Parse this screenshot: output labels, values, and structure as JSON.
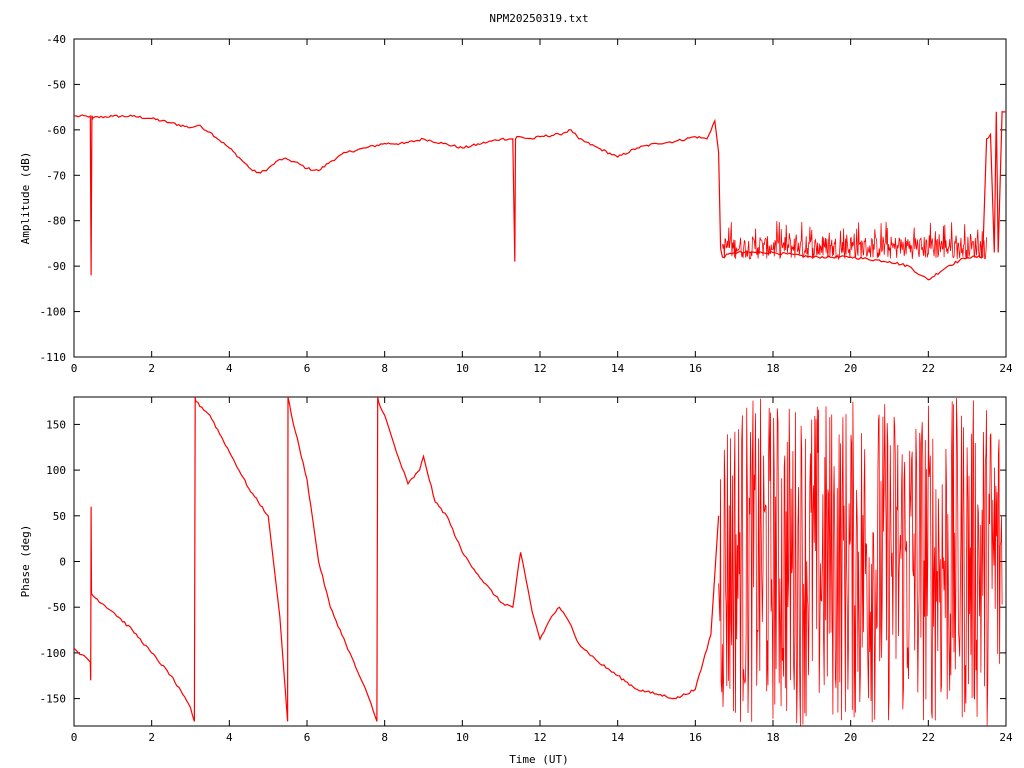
{
  "title": "NPM20250319.txt",
  "colors": {
    "series": "#ff0000",
    "axis": "#000000",
    "background": "#ffffff"
  },
  "chart_data": [
    {
      "type": "line",
      "ylabel": "Amplitude (dB)",
      "xlabel": "",
      "xlim": [
        0,
        24
      ],
      "ylim": [
        -110,
        -40
      ],
      "x_ticks": [
        0,
        2,
        4,
        6,
        8,
        10,
        12,
        14,
        16,
        18,
        20,
        22,
        24
      ],
      "y_ticks": [
        -40,
        -50,
        -60,
        -70,
        -80,
        -90,
        -100,
        -110
      ],
      "x_tick_labels": [
        "0",
        "2",
        "4",
        "6",
        "8",
        "10",
        "12",
        "14",
        "16",
        "18",
        "20",
        "22",
        "24"
      ],
      "y_tick_labels": [
        "-40",
        "-50",
        "-60",
        "-70",
        "-80",
        "-90",
        "-100",
        "-110"
      ],
      "grid": false,
      "series": [
        {
          "x": [
            0,
            0.42,
            0.44,
            0.46,
            0.48,
            0.5,
            1.0,
            1.5,
            2.0,
            2.5,
            3.0,
            3.2,
            3.5,
            4.0,
            4.3,
            4.6,
            4.8,
            5.0,
            5.3,
            5.5,
            5.8,
            6.0,
            6.3,
            6.6,
            7.0,
            7.5,
            8.0,
            8.5,
            9.0,
            9.5,
            10.0,
            10.5,
            11.0,
            11.3,
            11.35,
            11.37,
            11.4,
            11.8,
            12.0,
            12.5,
            12.8,
            13.0,
            13.5,
            14.0,
            14.5,
            15.0,
            15.5,
            16.0,
            16.3,
            16.5,
            16.6,
            16.65,
            16.7,
            17.0,
            18.0,
            19.0,
            20.0,
            21.0,
            21.5,
            21.8,
            22.0,
            22.5,
            23.0,
            23.4,
            23.5,
            23.6,
            23.7,
            23.75,
            23.8,
            23.9,
            24.0
          ],
          "values": [
            -57,
            -57,
            -92,
            -57,
            -57.5,
            -57.3,
            -57,
            -57,
            -57.5,
            -58.5,
            -59.5,
            -59,
            -60.5,
            -64,
            -66.5,
            -69,
            -69.5,
            -68.5,
            -66.5,
            -66.5,
            -67.5,
            -68.5,
            -69,
            -67,
            -65,
            -64,
            -63,
            -63,
            -62,
            -63,
            -64,
            -63,
            -62,
            -62,
            -89,
            -62,
            -61.5,
            -62,
            -61.5,
            -61,
            -60,
            -62,
            -64,
            -66,
            -64,
            -63,
            -62.5,
            -61.5,
            -62,
            -58,
            -65,
            -86,
            -88,
            -87,
            -87,
            -88,
            -88,
            -89,
            -90,
            -92,
            -93,
            -90,
            -88,
            -88,
            -62,
            -61,
            -87,
            -56,
            -87,
            -56,
            -56
          ],
          "noise_bands": [
            [
              16.7,
              23.5,
              -93,
              -80
            ]
          ]
        }
      ]
    },
    {
      "type": "line",
      "ylabel": "Phase (deg)",
      "xlabel": "Time (UT)",
      "xlim": [
        0,
        24
      ],
      "ylim": [
        -180,
        180
      ],
      "x_ticks": [
        0,
        2,
        4,
        6,
        8,
        10,
        12,
        14,
        16,
        18,
        20,
        22,
        24
      ],
      "y_ticks": [
        150,
        100,
        50,
        0,
        -50,
        -100,
        -150
      ],
      "x_tick_labels": [
        "0",
        "2",
        "4",
        "6",
        "8",
        "10",
        "12",
        "14",
        "16",
        "18",
        "20",
        "22",
        "24"
      ],
      "y_tick_labels": [
        "150",
        "100",
        "50",
        "0",
        "-50",
        "-100",
        "-150"
      ],
      "grid": false,
      "series": [
        {
          "x": [
            0,
            0.2,
            0.42,
            0.43,
            0.44,
            0.45,
            0.5,
            1.0,
            1.5,
            2.0,
            2.5,
            3.0,
            3.1,
            3.12,
            3.14,
            3.5,
            4.0,
            4.5,
            5.0,
            5.3,
            5.5,
            5.51,
            5.6,
            6.0,
            6.3,
            6.6,
            7.0,
            7.3,
            7.6,
            7.8,
            7.82,
            7.84,
            8.0,
            8.3,
            8.6,
            8.9,
            9.0,
            9.3,
            9.6,
            10.0,
            10.5,
            11.0,
            11.3,
            11.5,
            11.8,
            12.0,
            12.3,
            12.5,
            12.8,
            13.0,
            13.5,
            14.0,
            14.5,
            15.0,
            15.5,
            16.0,
            16.2,
            16.4,
            16.6
          ],
          "values": [
            -95,
            -102,
            -110,
            -130,
            60,
            -35,
            -38,
            -55,
            -75,
            -100,
            -125,
            -160,
            -175,
            180,
            175,
            160,
            120,
            80,
            50,
            -60,
            -175,
            180,
            160,
            90,
            0,
            -50,
            -90,
            -120,
            -150,
            -175,
            180,
            175,
            160,
            120,
            85,
            100,
            115,
            65,
            50,
            10,
            -20,
            -45,
            -50,
            10,
            -55,
            -85,
            -60,
            -50,
            -70,
            -90,
            -110,
            -125,
            -140,
            -145,
            -150,
            -140,
            -110,
            -80,
            50
          ],
          "noise_bands": [
            [
              16.6,
              23.9,
              -180,
              180
            ]
          ]
        }
      ]
    }
  ]
}
